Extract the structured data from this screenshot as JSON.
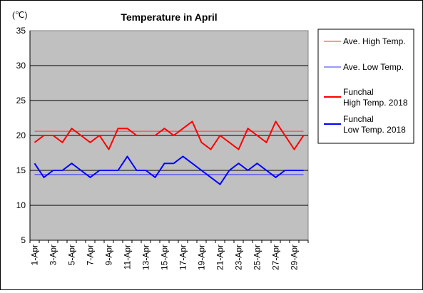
{
  "chart_data": {
    "type": "line",
    "title": "Temperature in April",
    "unit_label": "(℃)",
    "ylim": [
      5,
      35
    ],
    "yticks": [
      5,
      10,
      15,
      20,
      25,
      30,
      35
    ],
    "grid": true,
    "legend_position": "right",
    "x": [
      "1-Apr",
      "2-Apr",
      "3-Apr",
      "4-Apr",
      "5-Apr",
      "6-Apr",
      "7-Apr",
      "8-Apr",
      "9-Apr",
      "10-Apr",
      "11-Apr",
      "12-Apr",
      "13-Apr",
      "14-Apr",
      "15-Apr",
      "16-Apr",
      "17-Apr",
      "18-Apr",
      "19-Apr",
      "20-Apr",
      "21-Apr",
      "22-Apr",
      "23-Apr",
      "24-Apr",
      "25-Apr",
      "26-Apr",
      "27-Apr",
      "28-Apr",
      "29-Apr",
      "30-Apr"
    ],
    "x_tick_labels": [
      "1-Apr",
      "3-Apr",
      "5-Apr",
      "7-Apr",
      "9-Apr",
      "11-Apr",
      "13-Apr",
      "15-Apr",
      "17-Apr",
      "19-Apr",
      "21-Apr",
      "23-Apr",
      "25-Apr",
      "27-Apr",
      "29-Apr"
    ],
    "series": [
      {
        "name": "Ave. High Temp.",
        "color": "#ff3333",
        "width": 1,
        "values": [
          20.6,
          20.6,
          20.6,
          20.6,
          20.6,
          20.6,
          20.6,
          20.6,
          20.6,
          20.6,
          20.6,
          20.6,
          20.6,
          20.6,
          20.6,
          20.6,
          20.6,
          20.6,
          20.6,
          20.6,
          20.6,
          20.6,
          20.6,
          20.6,
          20.6,
          20.6,
          20.6,
          20.6,
          20.6,
          20.6
        ]
      },
      {
        "name": "Ave. Low Temp.",
        "color": "#3333ff",
        "width": 1,
        "values": [
          14.4,
          14.4,
          14.4,
          14.4,
          14.4,
          14.4,
          14.4,
          14.4,
          14.4,
          14.4,
          14.4,
          14.4,
          14.4,
          14.4,
          14.4,
          14.4,
          14.4,
          14.4,
          14.4,
          14.4,
          14.4,
          14.4,
          14.4,
          14.4,
          14.4,
          14.4,
          14.4,
          14.4,
          14.4,
          14.4
        ]
      },
      {
        "name": "Funchal\nHigh Temp. 2018",
        "name_lines": [
          "Funchal",
          "High Temp. 2018"
        ],
        "color": "#ff0000",
        "width": 2,
        "values": [
          19,
          20,
          20,
          19,
          21,
          20,
          19,
          20,
          18,
          21,
          21,
          20,
          20,
          20,
          21,
          20,
          21,
          22,
          19,
          18,
          20,
          19,
          18,
          21,
          20,
          19,
          22,
          20,
          18,
          20
        ]
      },
      {
        "name": "Funchal\nLow Temp. 2018",
        "name_lines": [
          "Funchal",
          "Low Temp. 2018"
        ],
        "color": "#0000ff",
        "width": 2,
        "values": [
          16,
          14,
          15,
          15,
          16,
          15,
          14,
          15,
          15,
          15,
          17,
          15,
          15,
          14,
          16,
          16,
          17,
          16,
          15,
          14,
          13,
          15,
          16,
          15,
          16,
          15,
          14,
          15,
          15,
          15
        ]
      }
    ]
  }
}
